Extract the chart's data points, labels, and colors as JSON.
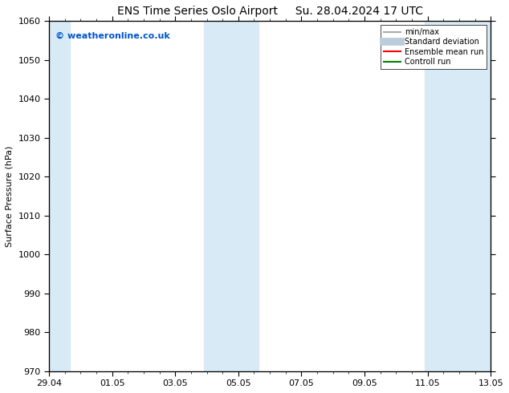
{
  "title_left": "ENS Time Series Oslo Airport",
  "title_right": "Su. 28.04.2024 17 UTC",
  "ylabel": "Surface Pressure (hPa)",
  "ylim": [
    970,
    1060
  ],
  "yticks": [
    970,
    980,
    990,
    1000,
    1010,
    1020,
    1030,
    1040,
    1050,
    1060
  ],
  "xtick_labels": [
    "29.04",
    "01.05",
    "03.05",
    "05.05",
    "07.05",
    "09.05",
    "11.05",
    "13.05"
  ],
  "xtick_positions": [
    0,
    2,
    4,
    6,
    8,
    10,
    12,
    14
  ],
  "xlim": [
    0,
    14
  ],
  "shaded_bands": [
    {
      "xmin": -0.02,
      "xmax": 0.65
    },
    {
      "xmin": 4.9,
      "xmax": 6.65
    },
    {
      "xmin": 11.9,
      "xmax": 14.02
    }
  ],
  "minor_xtick_count": 4,
  "watermark_text": "© weatheronline.co.uk",
  "watermark_color": "#0055cc",
  "legend_items": [
    {
      "label": "min/max",
      "color": "#aaaaaa",
      "lw": 1.5,
      "style": "line"
    },
    {
      "label": "Standard deviation",
      "color": "#bbccdd",
      "lw": 7,
      "style": "line"
    },
    {
      "label": "Ensemble mean run",
      "color": "red",
      "lw": 1.5,
      "style": "line"
    },
    {
      "label": "Controll run",
      "color": "green",
      "lw": 1.5,
      "style": "line"
    }
  ],
  "background_color": "#ffffff",
  "plot_bg_color": "#ffffff",
  "shaded_color": "#d8eaf5",
  "title_fontsize": 10,
  "ylabel_fontsize": 8,
  "tick_fontsize": 8,
  "watermark_fontsize": 8,
  "legend_fontsize": 7
}
